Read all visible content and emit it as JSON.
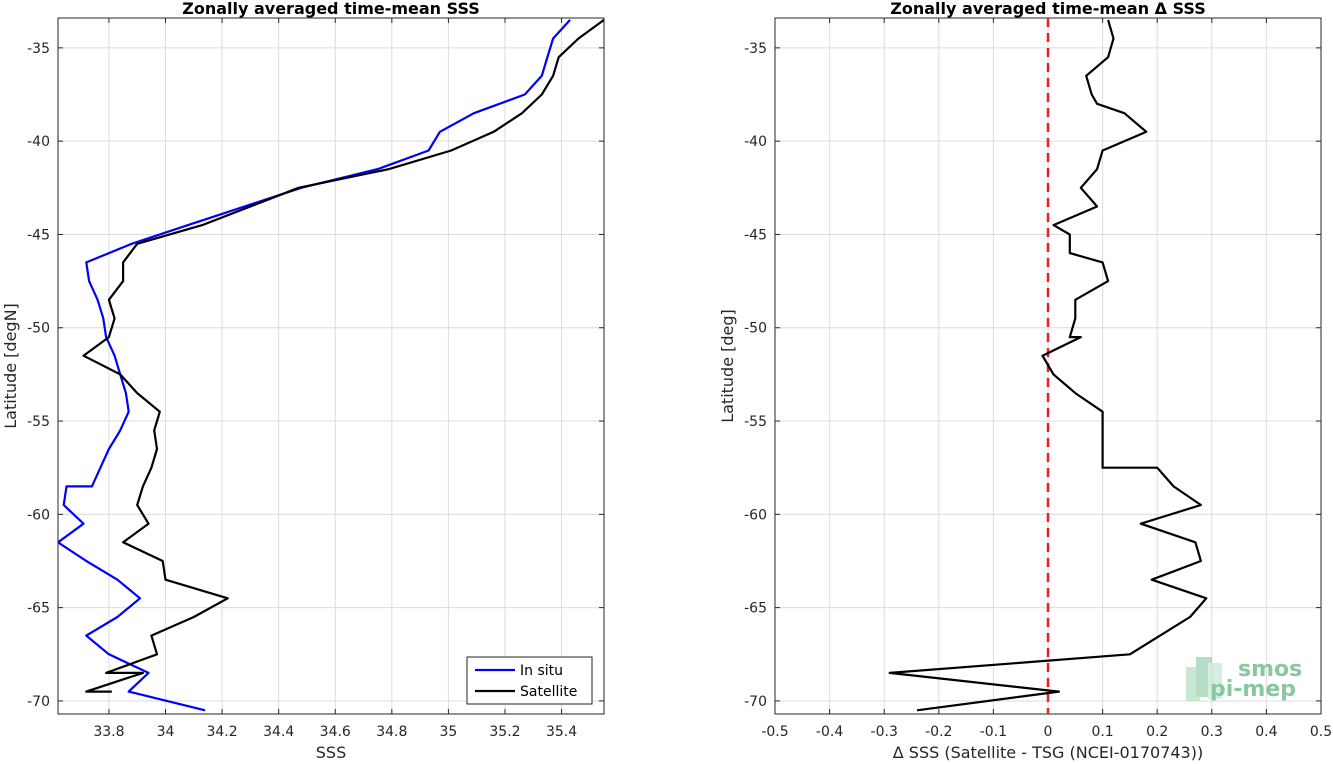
{
  "chart_data": [
    {
      "type": "line",
      "title": "Zonally averaged time-mean SSS",
      "xlabel": "SSS",
      "ylabel": "Latitude [degN]",
      "xlim": [
        33.62,
        35.55
      ],
      "ylim": [
        -70.7,
        -33.4
      ],
      "xticks": [
        33.8,
        34,
        34.2,
        34.4,
        34.6,
        34.8,
        35,
        35.2,
        35.4
      ],
      "xtick_labels": [
        "33.8",
        "34",
        "34.2",
        "34.4",
        "34.6",
        "34.8",
        "35",
        "35.2",
        "35.4"
      ],
      "yticks": [
        -35,
        -40,
        -45,
        -50,
        -55,
        -60,
        -65,
        -70
      ],
      "ytick_labels": [
        "-35",
        "-40",
        "-45",
        "-50",
        "-55",
        "-60",
        "-65",
        "-70"
      ],
      "grid": true,
      "legend": "bottom-right",
      "series": [
        {
          "name": "In situ",
          "color": "#0000ff",
          "x": [
            35.43,
            35.37,
            35.35,
            35.33,
            35.27,
            35.09,
            34.97,
            34.93,
            34.75,
            34.48,
            34.08,
            33.88,
            33.72,
            33.73,
            33.76,
            33.78,
            33.79,
            33.82,
            33.84,
            33.86,
            33.87,
            33.84,
            33.8,
            33.77,
            33.74,
            33.65,
            33.64,
            33.71,
            33.62,
            33.72,
            33.83,
            33.91,
            33.83,
            33.72,
            33.8,
            33.94,
            33.87,
            34.14
          ],
          "y": [
            -33.5,
            -34.5,
            -35.5,
            -36.5,
            -37.5,
            -38.5,
            -39.5,
            -40.5,
            -41.5,
            -42.5,
            -44.5,
            -45.5,
            -46.5,
            -47.5,
            -48.5,
            -49.5,
            -50.5,
            -51.5,
            -52.5,
            -53.5,
            -54.5,
            -55.5,
            -56.5,
            -57.5,
            -58.5,
            -58.5,
            -59.5,
            -60.5,
            -61.5,
            -62.5,
            -63.5,
            -64.5,
            -65.5,
            -66.5,
            -67.5,
            -68.5,
            -69.5,
            -70.5
          ]
        },
        {
          "name": "Satellite",
          "color": "#000000",
          "x": [
            35.55,
            35.46,
            35.39,
            35.37,
            35.33,
            35.26,
            35.16,
            35.01,
            34.79,
            34.47,
            34.13,
            33.9,
            33.85,
            33.85,
            33.8,
            33.82,
            33.8,
            33.71,
            33.84,
            33.9,
            33.98,
            33.96,
            33.97,
            33.95,
            33.92,
            33.9,
            33.94,
            33.94,
            33.85,
            33.99,
            34.0,
            34.22,
            34.1,
            33.95,
            33.97,
            33.79,
            33.92,
            33.72,
            33.81
          ],
          "y": [
            -33.5,
            -34.5,
            -35.5,
            -36.5,
            -37.5,
            -38.5,
            -39.5,
            -40.5,
            -41.5,
            -42.5,
            -44.5,
            -45.5,
            -46.5,
            -47.5,
            -48.5,
            -49.5,
            -50.5,
            -51.5,
            -52.5,
            -53.5,
            -54.5,
            -55.5,
            -56.5,
            -57.5,
            -58.5,
            -59.5,
            -60.5,
            -60.5,
            -61.5,
            -62.5,
            -63.5,
            -64.5,
            -65.5,
            -66.5,
            -67.5,
            -68.5,
            -68.5,
            -69.5,
            -69.5
          ]
        }
      ]
    },
    {
      "type": "line",
      "title": "Zonally averaged time-mean Δ SSS",
      "xlabel": "Δ SSS (Satellite - TSG (NCEI-0170743))",
      "ylabel": "Latitude [deg]",
      "xlim": [
        -0.5,
        0.5
      ],
      "ylim": [
        -70.7,
        -33.4
      ],
      "xticks": [
        -0.5,
        -0.4,
        -0.3,
        -0.2,
        -0.1,
        0,
        0.1,
        0.2,
        0.3,
        0.4,
        0.5
      ],
      "xtick_labels": [
        "-0.5",
        "-0.4",
        "-0.3",
        "-0.2",
        "-0.1",
        "0",
        "0.1",
        "0.2",
        "0.3",
        "0.4",
        "0.5"
      ],
      "yticks": [
        -35,
        -40,
        -45,
        -50,
        -55,
        -60,
        -65,
        -70
      ],
      "ytick_labels": [
        "-35",
        "-40",
        "-45",
        "-50",
        "-55",
        "-60",
        "-65",
        "-70"
      ],
      "grid": true,
      "reference_line": {
        "x": 0,
        "color": "#e8201e",
        "style": "dashed"
      },
      "series": [
        {
          "color": "#000000",
          "x": [
            0.11,
            0.12,
            0.11,
            0.07,
            0.08,
            0.09,
            0.14,
            0.18,
            0.1,
            0.09,
            0.06,
            0.09,
            0.01,
            0.04,
            0.04,
            0.1,
            0.11,
            0.05,
            0.05,
            0.04,
            0.06,
            -0.01,
            0.01,
            0.05,
            0.1,
            0.1,
            0.1,
            0.2,
            0.23,
            0.28,
            0.17,
            0.27,
            0.28,
            0.19,
            0.29,
            0.26,
            0.15,
            -0.29,
            0.02,
            -0.24
          ],
          "y": [
            -33.5,
            -34.5,
            -35.5,
            -36.5,
            -37.5,
            -38.0,
            -38.5,
            -39.5,
            -40.5,
            -41.5,
            -42.5,
            -43.5,
            -44.5,
            -45.0,
            -46.0,
            -46.5,
            -47.5,
            -48.5,
            -49.5,
            -50.5,
            -50.5,
            -51.5,
            -52.5,
            -53.5,
            -54.5,
            -56.5,
            -57.5,
            -57.5,
            -58.5,
            -59.5,
            -60.5,
            -61.5,
            -62.5,
            -63.5,
            -64.5,
            -65.5,
            -67.5,
            -68.5,
            -69.5,
            -70.5
          ]
        }
      ]
    }
  ],
  "watermark": {
    "line1": "smos",
    "line2": "pi-mep"
  }
}
